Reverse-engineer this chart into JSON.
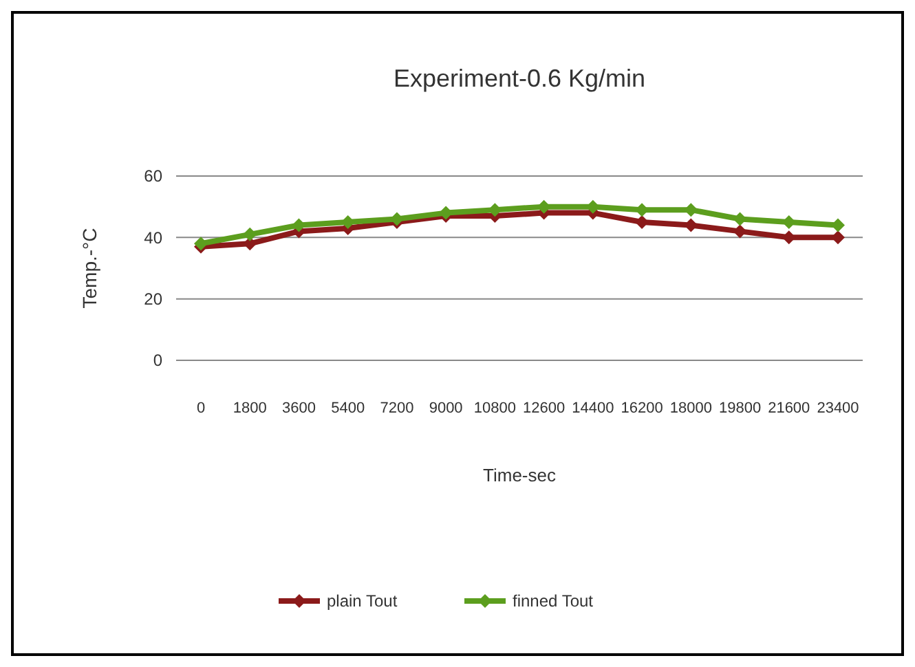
{
  "chart_data": {
    "type": "line",
    "title": "Experiment-0.6 Kg/min",
    "xlabel": "Time-sec",
    "ylabel": "Temp.-°C",
    "categories": [
      "0",
      "1800",
      "3600",
      "5400",
      "7200",
      "9000",
      "10800",
      "12600",
      "14400",
      "16200",
      "18000",
      "19800",
      "21600",
      "23400"
    ],
    "series": [
      {
        "name": "plain Tout",
        "color": "#8b1a1a",
        "values": [
          37,
          38,
          42,
          43,
          45,
          47,
          47,
          48,
          48,
          45,
          44,
          42,
          40,
          40
        ]
      },
      {
        "name": "finned Tout",
        "color": "#5c9e1e",
        "values": [
          38,
          41,
          44,
          45,
          46,
          48,
          49,
          50,
          50,
          49,
          49,
          46,
          45,
          44
        ]
      }
    ],
    "ylim": [
      0,
      60
    ],
    "yticks": [
      0,
      20,
      40,
      60
    ],
    "grid": "y",
    "legend": "bottom",
    "marker": "diamond",
    "line_style": "solid"
  }
}
